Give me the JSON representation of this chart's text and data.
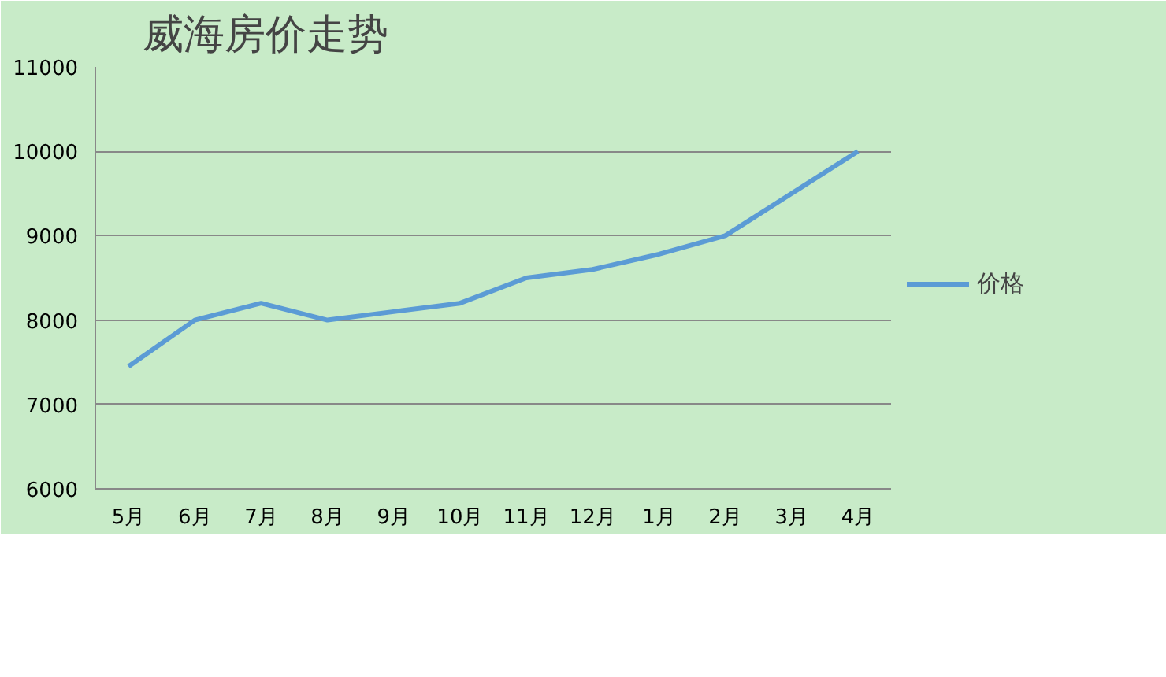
{
  "chart_data": {
    "type": "line",
    "title": "威海房价走势",
    "categories": [
      "5月",
      "6月",
      "7月",
      "8月",
      "9月",
      "10月",
      "11月",
      "12月",
      "1月",
      "2月",
      "3月",
      "4月"
    ],
    "series": [
      {
        "name": "价格",
        "color": "#5b9bd5",
        "values": [
          7450,
          8000,
          8200,
          8000,
          8100,
          8200,
          8500,
          8600,
          8780,
          9000,
          9500,
          10000
        ]
      }
    ],
    "ylim": [
      6000,
      11000
    ],
    "yticks": [
      6000,
      7000,
      8000,
      9000,
      10000,
      11000
    ],
    "grid": "y",
    "legend": "right",
    "marker": "none",
    "line_style": "solid"
  }
}
